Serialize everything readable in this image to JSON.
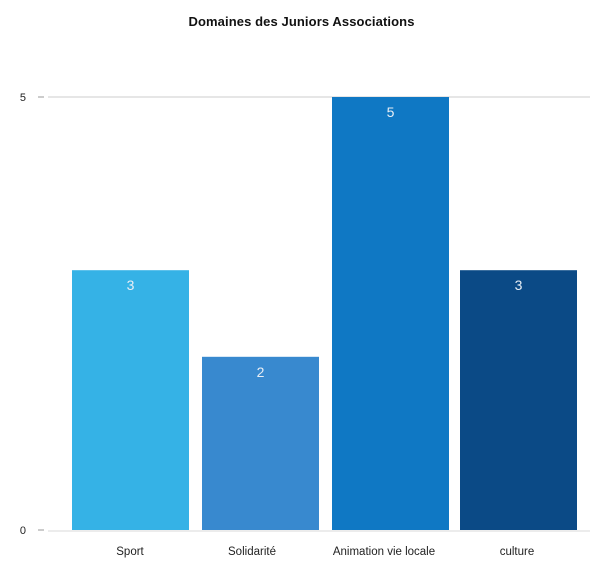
{
  "chart_data": {
    "type": "bar",
    "title": "Domaines des Juniors Associations",
    "categories": [
      "Sport",
      "Solidarité",
      "Animation vie locale",
      "culture"
    ],
    "values": [
      3,
      2,
      5,
      3
    ],
    "colors": [
      "#35b2e6",
      "#3889cf",
      "#0f78c4",
      "#0b4a86"
    ],
    "ylim": [
      0,
      5
    ],
    "yticks": [
      0,
      5
    ],
    "xlabel": "",
    "ylabel": "",
    "grid": "horizontal-top-line",
    "data_labels": true
  }
}
